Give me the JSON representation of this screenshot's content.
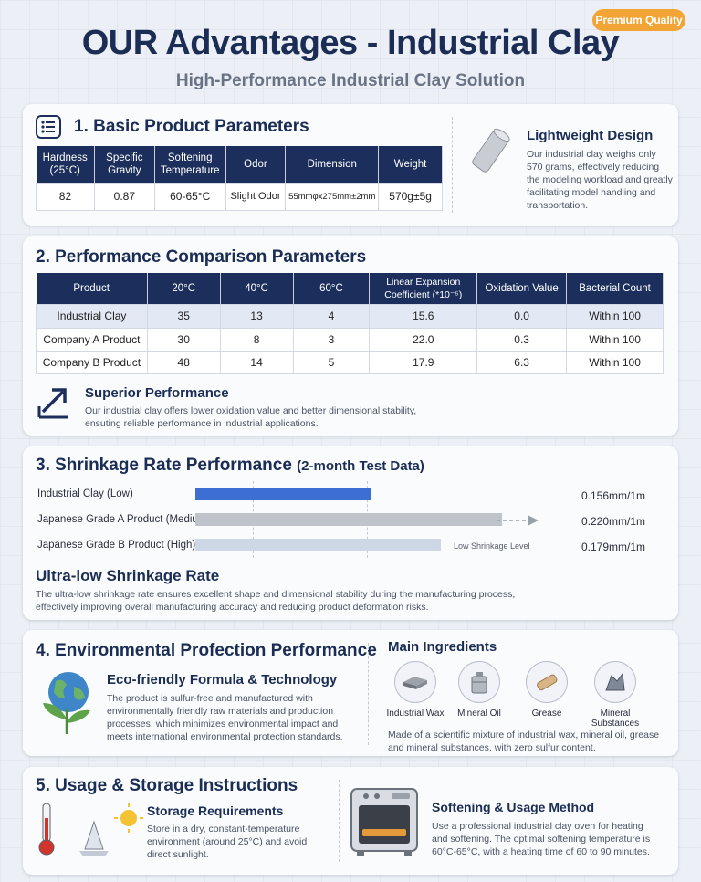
{
  "badge": "Premium Quality",
  "title": "OUR Advantages - Industrial Clay",
  "subtitle": "High-Performance Industrial Clay Solution",
  "section1": {
    "title": "1. Basic Product Parameters",
    "headers": [
      "Hardness (25°C)",
      "Specific Gravity",
      "Softening Temperature",
      "Odor",
      "Dimension",
      "Weight"
    ],
    "values": [
      "82",
      "0.87",
      "60-65°C",
      "Slight Odor",
      "55mmφx275mm±2mm",
      "570g±5g"
    ],
    "feature_title": "Lightweight Design",
    "feature_text": "Our industrial clay weighs only 570 grams, effectively reducing the modeling workload and greatly facilitating model handling and transportation."
  },
  "section2": {
    "title": "2. Performance Comparison Parameters",
    "headers": [
      "Product",
      "20°C",
      "40°C",
      "60°C",
      "Linear Expansion Coefficient (*10⁻⁵)",
      "Oxidation Value",
      "Bacterial Count"
    ],
    "rows": [
      [
        "Industrial Clay",
        "35",
        "13",
        "4",
        "15.6",
        "0.0",
        "Within 100"
      ],
      [
        "Company A Product",
        "30",
        "8",
        "3",
        "22.0",
        "0.3",
        "Within 100"
      ],
      [
        "Company B Product",
        "48",
        "14",
        "5",
        "17.9",
        "6.3",
        "Within 100"
      ]
    ],
    "feature_title": "Superior Performance",
    "feature_text": "Our industrial clay offers lower oxidation value and better dimensional stability, ensuting reliable performance in industrial applications."
  },
  "section3": {
    "title": "3. Shrinkage Rate Performance",
    "title_suffix": "(2-month Test Data)",
    "bars": [
      {
        "label": "Industrial Clay (Low)",
        "value": "0.156mm/1m",
        "color": "#3d6fd3",
        "fill": 0.345
      },
      {
        "label": "Japanese Grade A Product (Medium)",
        "value": "0.220mm/1m",
        "color": "#bfc3ca",
        "fill": 0.6
      },
      {
        "label": "Japanese Grade B Product (High)",
        "value": "0.179mm/1m",
        "color": "#cdd7e6",
        "fill": 0.48
      }
    ],
    "bar_note": "Low Shrinkage Level",
    "feature_title": "Ultra-low Shrinkage Rate",
    "feature_text": "The ultra-low shrinkage rate ensures excellent shape and dimensional stability during the manufacturing process, effectively improving overall manufacturing accuracy and reducing product deformation risks."
  },
  "section4": {
    "title": "4. Environmental Profection Performance",
    "feature_title": "Eco-friendly Formula & Technology",
    "feature_text": "The product is sulfur-free and manufactured with environmentally friendly raw materials and production processes, which minimizes environmental impact and meets international environmental protection standards.",
    "ingredients_title": "Main Ingredients",
    "ingredients": [
      "Industrial Wax",
      "Mineral Oil",
      "Grease",
      "Mineral Substances"
    ],
    "ingredients_text": "Made of a scientific mixture of industrial wax, mineral oil, grease and mineral substances, with zero sulfur content."
  },
  "section5": {
    "title": "5. Usage & Storage Instructions",
    "storage_title": "Storage Requirements",
    "storage_text": "Store in a dry, constant-temperature environment (around 25°C) and avoid direct sunlight.",
    "usage_title": "Softening & Usage Method",
    "usage_text": "Use a professional industrial clay oven for heating and softening. The optimal softening temperature is 60°C-65°C, with a heating time of 60 to 90 minutes."
  }
}
